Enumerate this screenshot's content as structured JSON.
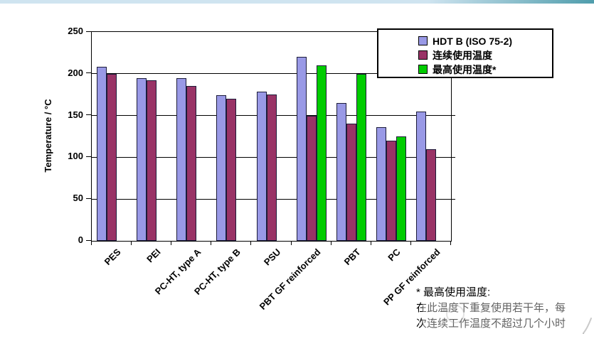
{
  "page": {
    "top_strip_colors": [
      "#cfe4f0",
      "#4f9dac"
    ]
  },
  "chart_data": {
    "type": "bar",
    "title": "",
    "xlabel": "",
    "ylabel": "Temperature / °C",
    "ylim": [
      0,
      250
    ],
    "ytick_interval": 50,
    "grid": true,
    "legend_position": "top-right-overlay",
    "categories": [
      "PES",
      "PEI",
      "PC-HT, type A",
      "PC-HT, type B",
      "PSU",
      "PBT GF reinforced",
      "PBT",
      "PC",
      "PP GF reinforced"
    ],
    "series": [
      {
        "name": "HDT B (ISO 75-2)",
        "color": "#9999E6",
        "values": [
          208,
          195,
          195,
          174,
          179,
          220,
          165,
          136,
          155
        ]
      },
      {
        "name": "连续使用温度",
        "color": "#993366",
        "values": [
          200,
          192,
          185,
          170,
          175,
          150,
          140,
          120,
          110
        ]
      },
      {
        "name": "最高使用温度*",
        "color": "#00CC00",
        "values": [
          null,
          null,
          null,
          null,
          null,
          210,
          200,
          125,
          null
        ]
      }
    ]
  },
  "footnote": {
    "lines": [
      "* 最高使用温度:",
      "在此温度下重复使用若干年，每",
      "次连续工作温度不超过几个小时"
    ]
  }
}
